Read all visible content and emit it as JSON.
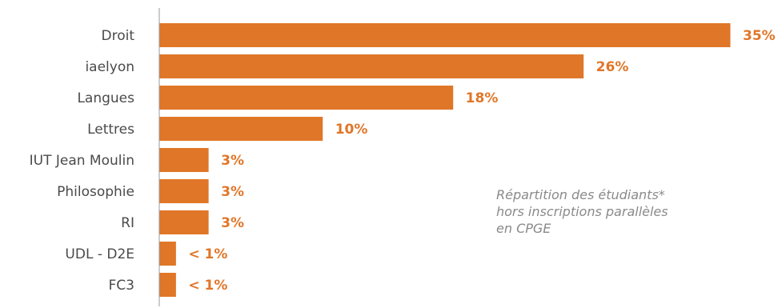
{
  "chart_data": {
    "type": "bar",
    "orientation": "horizontal",
    "categories": [
      "Droit",
      "iaelyon",
      "Langues",
      "Lettres",
      "IUT Jean Moulin",
      "Philosophie",
      "RI",
      "UDL - D2E",
      "FC3"
    ],
    "values": [
      35,
      26,
      18,
      10,
      3,
      3,
      3,
      1,
      1
    ],
    "labels": [
      "35%",
      "26%",
      "18%",
      "10%",
      "3%",
      "3%",
      "3%",
      "< 1%",
      "< 1%"
    ],
    "xlim": [
      0,
      35
    ],
    "grid": false,
    "legend": "none",
    "bar_color": "#E07628",
    "label_color": "#E07628"
  },
  "annotation": {
    "lines": [
      "Répartition des étudiants*",
      "hors inscriptions parallèles",
      "en CPGE"
    ]
  }
}
